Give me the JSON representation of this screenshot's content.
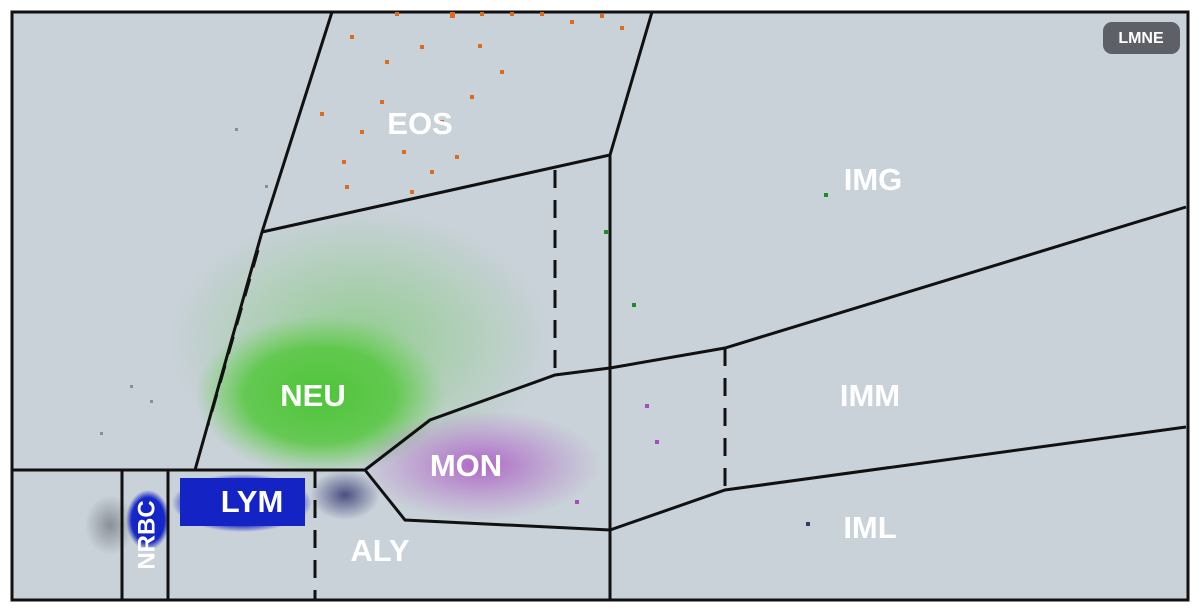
{
  "badge": "LMNE",
  "regions": [
    {
      "label": "EOS"
    },
    {
      "label": "IMG"
    },
    {
      "label": "NEU"
    },
    {
      "label": "IMM"
    },
    {
      "label": "MON"
    },
    {
      "label": "LYM"
    },
    {
      "label": "NRBC"
    },
    {
      "label": "ALY"
    },
    {
      "label": "IML"
    }
  ]
}
